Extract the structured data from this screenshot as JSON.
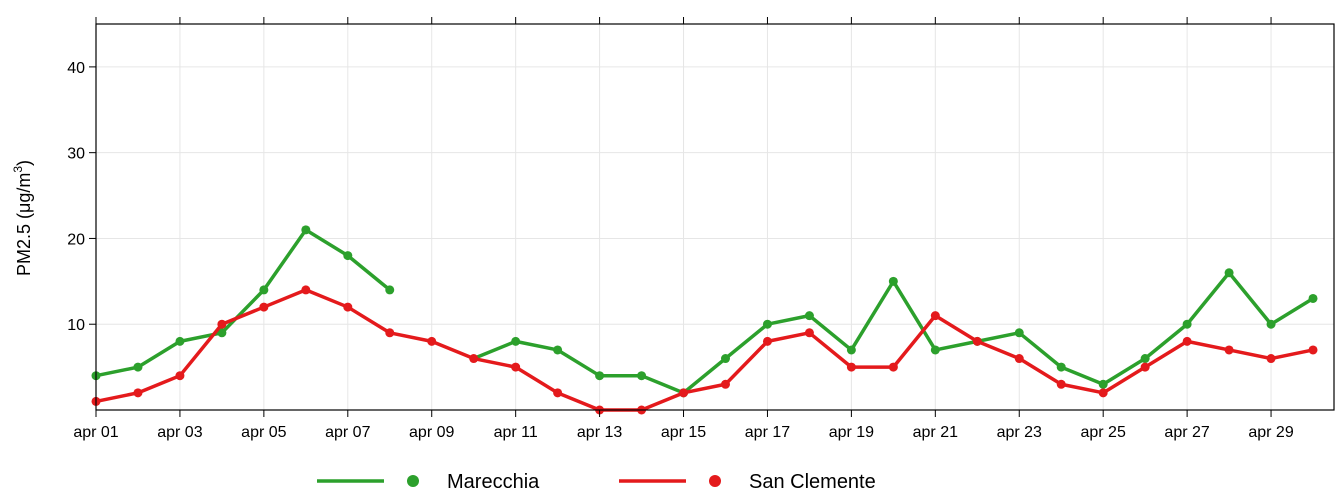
{
  "chart_data": {
    "type": "line",
    "ylabel": "PM2.5 (μg/m",
    "ylabel_superscript": "3",
    "ylabel_close": ")",
    "ylim": [
      0,
      45
    ],
    "xlim": [
      1,
      30.5
    ],
    "y_ticks": [
      10,
      20,
      30,
      40
    ],
    "x_tick_positions": [
      1,
      3,
      5,
      7,
      9,
      11,
      13,
      15,
      17,
      19,
      21,
      23,
      25,
      27,
      29
    ],
    "x_tick_labels": [
      "apr 01",
      "apr 03",
      "apr 05",
      "apr 07",
      "apr 09",
      "apr 11",
      "apr 13",
      "apr 15",
      "apr 17",
      "apr 19",
      "apr 21",
      "apr 23",
      "apr 25",
      "apr 27",
      "apr 29"
    ],
    "top_tick_positions": [
      1,
      3,
      5,
      7,
      9,
      11,
      13,
      15,
      17,
      19,
      21,
      23,
      25,
      27,
      29
    ],
    "grid": true,
    "legend_position": "bottom",
    "x": [
      1,
      2,
      3,
      4,
      5,
      6,
      7,
      8,
      9,
      10,
      11,
      12,
      13,
      14,
      15,
      16,
      17,
      18,
      19,
      20,
      21,
      22,
      23,
      24,
      25,
      26,
      27,
      28,
      29,
      30
    ],
    "series": [
      {
        "name": "Marecchia",
        "color": "#2ca02c",
        "values": [
          4,
          5,
          8,
          9,
          14,
          21,
          18,
          14,
          null,
          null,
          8,
          7,
          4,
          4,
          2,
          6,
          10,
          11,
          7,
          15,
          7,
          8,
          9,
          5,
          3,
          6,
          10,
          16,
          10,
          13
        ]
      },
      {
        "name": "San Clemente",
        "color": "#e41a1c",
        "values": [
          1,
          2,
          4,
          10,
          12,
          14,
          12,
          9,
          8,
          6,
          5,
          2,
          0,
          0,
          2,
          3,
          8,
          9,
          5,
          5,
          11,
          8,
          6,
          3,
          2,
          5,
          8,
          7,
          6,
          7
        ]
      }
    ],
    "connector": {
      "series": "Marecchia",
      "x": [
        10,
        11
      ],
      "values": [
        6,
        8
      ]
    }
  }
}
